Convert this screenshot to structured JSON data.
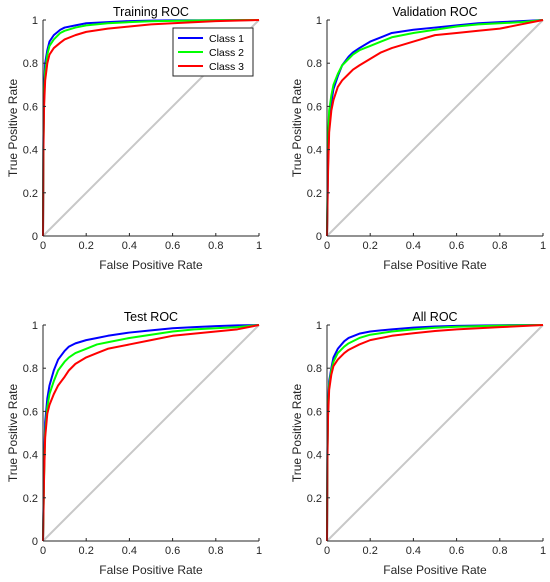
{
  "chart_data": [
    {
      "type": "line",
      "title": "Training ROC",
      "xlabel": "False Positive Rate",
      "ylabel": "True Positive Rate",
      "xlim": [
        0,
        1
      ],
      "ylim": [
        0,
        1
      ],
      "xticks": [
        "0",
        "0.2",
        "0.4",
        "0.6",
        "0.8",
        "1"
      ],
      "yticks": [
        "0",
        "0.2",
        "0.4",
        "0.6",
        "0.8",
        "1"
      ],
      "grid": false,
      "legend": {
        "placement": "top-right",
        "entries": [
          "Class 1",
          "Class 2",
          "Class 3"
        ]
      },
      "diagonal": {
        "x": [
          0,
          1
        ],
        "y": [
          0,
          1
        ],
        "color": "#c8c8c8"
      },
      "series": [
        {
          "name": "Class 1",
          "color": "#0000ff",
          "x": [
            0,
            0.002,
            0.005,
            0.01,
            0.02,
            0.03,
            0.05,
            0.08,
            0.1,
            0.15,
            0.2,
            0.3,
            0.4,
            0.5,
            0.6,
            0.8,
            1
          ],
          "y": [
            0,
            0.45,
            0.68,
            0.8,
            0.86,
            0.9,
            0.93,
            0.955,
            0.965,
            0.975,
            0.985,
            0.99,
            0.995,
            0.997,
            0.998,
            0.999,
            1
          ]
        },
        {
          "name": "Class 2",
          "color": "#00ff00",
          "x": [
            0,
            0.002,
            0.005,
            0.01,
            0.02,
            0.03,
            0.05,
            0.08,
            0.1,
            0.15,
            0.2,
            0.3,
            0.4,
            0.5,
            0.6,
            0.8,
            1
          ],
          "y": [
            0,
            0.42,
            0.63,
            0.76,
            0.84,
            0.88,
            0.91,
            0.94,
            0.95,
            0.965,
            0.975,
            0.985,
            0.99,
            0.994,
            0.996,
            0.999,
            1
          ]
        },
        {
          "name": "Class 3",
          "color": "#ff0000",
          "x": [
            0,
            0.002,
            0.005,
            0.01,
            0.02,
            0.03,
            0.05,
            0.08,
            0.1,
            0.15,
            0.2,
            0.3,
            0.4,
            0.5,
            0.6,
            0.8,
            1
          ],
          "y": [
            0,
            0.4,
            0.6,
            0.72,
            0.8,
            0.84,
            0.87,
            0.895,
            0.91,
            0.93,
            0.945,
            0.96,
            0.97,
            0.98,
            0.985,
            0.995,
            1
          ]
        }
      ]
    },
    {
      "type": "line",
      "title": "Validation ROC",
      "xlabel": "False Positive Rate",
      "ylabel": "True Positive Rate",
      "xlim": [
        0,
        1
      ],
      "ylim": [
        0,
        1
      ],
      "xticks": [
        "0",
        "0.2",
        "0.4",
        "0.6",
        "0.8",
        "1"
      ],
      "yticks": [
        "0",
        "0.2",
        "0.4",
        "0.6",
        "0.8",
        "1"
      ],
      "grid": false,
      "diagonal": {
        "x": [
          0,
          1
        ],
        "y": [
          0,
          1
        ],
        "color": "#c8c8c8"
      },
      "series": [
        {
          "name": "Class 1",
          "color": "#0000ff",
          "x": [
            0,
            0.005,
            0.01,
            0.02,
            0.03,
            0.05,
            0.07,
            0.1,
            0.12,
            0.15,
            0.2,
            0.25,
            0.3,
            0.4,
            0.5,
            0.6,
            0.7,
            0.8,
            0.9,
            1
          ],
          "y": [
            0,
            0.35,
            0.52,
            0.62,
            0.68,
            0.74,
            0.79,
            0.83,
            0.85,
            0.87,
            0.9,
            0.92,
            0.94,
            0.955,
            0.965,
            0.975,
            0.985,
            0.99,
            0.995,
            1
          ]
        },
        {
          "name": "Class 2",
          "color": "#00ff00",
          "x": [
            0,
            0.005,
            0.01,
            0.02,
            0.03,
            0.05,
            0.07,
            0.1,
            0.12,
            0.15,
            0.2,
            0.25,
            0.3,
            0.4,
            0.5,
            0.6,
            0.7,
            0.8,
            0.9,
            1
          ],
          "y": [
            0,
            0.45,
            0.58,
            0.65,
            0.7,
            0.75,
            0.79,
            0.82,
            0.84,
            0.86,
            0.88,
            0.9,
            0.92,
            0.94,
            0.955,
            0.97,
            0.98,
            0.985,
            0.99,
            1
          ]
        },
        {
          "name": "Class 3",
          "color": "#ff0000",
          "x": [
            0,
            0.005,
            0.01,
            0.02,
            0.03,
            0.05,
            0.07,
            0.1,
            0.12,
            0.15,
            0.2,
            0.25,
            0.3,
            0.4,
            0.5,
            0.6,
            0.7,
            0.8,
            0.9,
            1
          ],
          "y": [
            0,
            0.3,
            0.48,
            0.58,
            0.63,
            0.69,
            0.72,
            0.75,
            0.77,
            0.79,
            0.82,
            0.85,
            0.87,
            0.9,
            0.93,
            0.94,
            0.95,
            0.96,
            0.98,
            1
          ]
        }
      ]
    },
    {
      "type": "line",
      "title": "Test ROC",
      "xlabel": "False Positive Rate",
      "ylabel": "True Positive Rate",
      "xlim": [
        0,
        1
      ],
      "ylim": [
        0,
        1
      ],
      "xticks": [
        "0",
        "0.2",
        "0.4",
        "0.6",
        "0.8",
        "1"
      ],
      "yticks": [
        "0",
        "0.2",
        "0.4",
        "0.6",
        "0.8",
        "1"
      ],
      "grid": false,
      "diagonal": {
        "x": [
          0,
          1
        ],
        "y": [
          0,
          1
        ],
        "color": "#c8c8c8"
      },
      "series": [
        {
          "name": "Class 1",
          "color": "#0000ff",
          "x": [
            0,
            0.005,
            0.01,
            0.02,
            0.03,
            0.05,
            0.07,
            0.1,
            0.12,
            0.15,
            0.2,
            0.25,
            0.3,
            0.4,
            0.5,
            0.6,
            0.7,
            0.8,
            0.9,
            1
          ],
          "y": [
            0,
            0.35,
            0.55,
            0.66,
            0.72,
            0.79,
            0.84,
            0.88,
            0.9,
            0.915,
            0.93,
            0.94,
            0.95,
            0.965,
            0.975,
            0.985,
            0.99,
            0.995,
            0.998,
            1
          ]
        },
        {
          "name": "Class 2",
          "color": "#00ff00",
          "x": [
            0,
            0.005,
            0.01,
            0.02,
            0.03,
            0.05,
            0.07,
            0.1,
            0.12,
            0.15,
            0.2,
            0.25,
            0.3,
            0.4,
            0.5,
            0.6,
            0.7,
            0.8,
            0.9,
            1
          ],
          "y": [
            0,
            0.3,
            0.5,
            0.62,
            0.68,
            0.74,
            0.79,
            0.83,
            0.85,
            0.87,
            0.89,
            0.91,
            0.92,
            0.94,
            0.955,
            0.97,
            0.98,
            0.985,
            0.99,
            1
          ]
        },
        {
          "name": "Class 3",
          "color": "#ff0000",
          "x": [
            0,
            0.005,
            0.01,
            0.02,
            0.03,
            0.05,
            0.07,
            0.1,
            0.12,
            0.15,
            0.2,
            0.25,
            0.3,
            0.4,
            0.5,
            0.6,
            0.7,
            0.8,
            0.9,
            1
          ],
          "y": [
            0,
            0.3,
            0.48,
            0.59,
            0.63,
            0.68,
            0.72,
            0.76,
            0.79,
            0.82,
            0.85,
            0.87,
            0.89,
            0.91,
            0.93,
            0.95,
            0.96,
            0.97,
            0.98,
            1
          ]
        }
      ]
    },
    {
      "type": "line",
      "title": "All ROC",
      "xlabel": "False Positive Rate",
      "ylabel": "True Positive Rate",
      "xlim": [
        0,
        1
      ],
      "ylim": [
        0,
        1
      ],
      "xticks": [
        "0",
        "0.2",
        "0.4",
        "0.6",
        "0.8",
        "1"
      ],
      "yticks": [
        "0",
        "0.2",
        "0.4",
        "0.6",
        "0.8",
        "1"
      ],
      "grid": false,
      "diagonal": {
        "x": [
          0,
          1
        ],
        "y": [
          0,
          1
        ],
        "color": "#c8c8c8"
      },
      "series": [
        {
          "name": "Class 1",
          "color": "#0000ff",
          "x": [
            0,
            0.002,
            0.005,
            0.01,
            0.02,
            0.03,
            0.05,
            0.08,
            0.1,
            0.15,
            0.2,
            0.3,
            0.4,
            0.5,
            0.6,
            0.8,
            1
          ],
          "y": [
            0,
            0.42,
            0.62,
            0.74,
            0.8,
            0.85,
            0.89,
            0.925,
            0.94,
            0.96,
            0.97,
            0.98,
            0.988,
            0.993,
            0.996,
            0.999,
            1
          ]
        },
        {
          "name": "Class 2",
          "color": "#00ff00",
          "x": [
            0,
            0.002,
            0.005,
            0.01,
            0.02,
            0.03,
            0.05,
            0.08,
            0.1,
            0.15,
            0.2,
            0.3,
            0.4,
            0.5,
            0.6,
            0.8,
            1
          ],
          "y": [
            0,
            0.4,
            0.6,
            0.72,
            0.79,
            0.83,
            0.87,
            0.9,
            0.915,
            0.94,
            0.955,
            0.97,
            0.98,
            0.987,
            0.992,
            0.997,
            1
          ]
        },
        {
          "name": "Class 3",
          "color": "#ff0000",
          "x": [
            0,
            0.002,
            0.005,
            0.01,
            0.02,
            0.03,
            0.05,
            0.08,
            0.1,
            0.15,
            0.2,
            0.3,
            0.4,
            0.5,
            0.6,
            0.8,
            1
          ],
          "y": [
            0,
            0.38,
            0.58,
            0.7,
            0.77,
            0.81,
            0.84,
            0.87,
            0.885,
            0.91,
            0.93,
            0.95,
            0.962,
            0.972,
            0.98,
            0.99,
            1
          ]
        }
      ]
    }
  ]
}
